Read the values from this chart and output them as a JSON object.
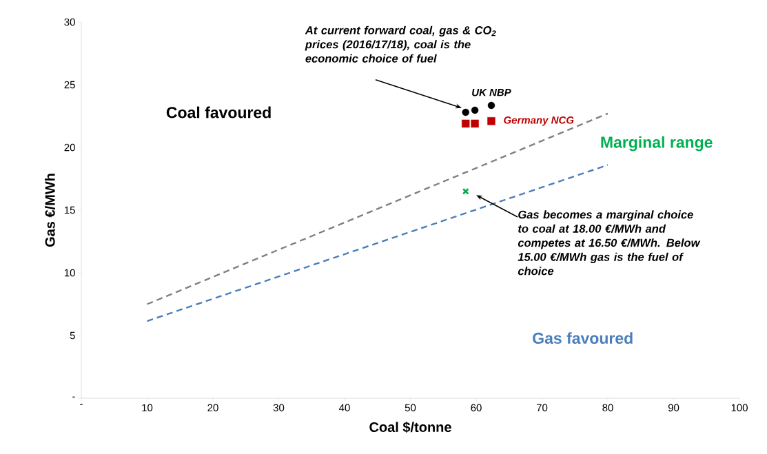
{
  "chart_data": {
    "type": "scatter",
    "xlabel": "Coal $/tonne",
    "ylabel": "Gas €/MWh",
    "xlim": [
      0,
      100
    ],
    "ylim": [
      0,
      30
    ],
    "xticks": [
      {
        "value": 0,
        "label": "-"
      },
      10,
      20,
      30,
      40,
      50,
      60,
      70,
      80,
      90,
      100
    ],
    "yticks": [
      {
        "value": 0,
        "label": "-"
      },
      5,
      10,
      15,
      20,
      25,
      30
    ],
    "series": [
      {
        "name": "UK NBP",
        "color": "#000000",
        "marker": "circle",
        "x": [
          58.4,
          59.8,
          62.3
        ],
        "values": [
          22.8,
          22.97,
          23.35
        ]
      },
      {
        "name": "Germany NCG",
        "color": "#c00000",
        "marker": "square",
        "x": [
          58.4,
          59.8,
          62.3
        ],
        "values": [
          21.9,
          21.9,
          22.1
        ]
      },
      {
        "type": "line",
        "color": "#808080",
        "marker": "none",
        "line_style": "dashed",
        "x": [
          10,
          80
        ],
        "values": [
          7.5,
          22.7
        ]
      },
      {
        "type": "line",
        "color": "#4a7ebb",
        "marker": "none",
        "line_style": "dashed",
        "x": [
          10,
          80
        ],
        "values": [
          6.15,
          18.6
        ]
      },
      {
        "color": "#00b050",
        "marker": "cross",
        "x": [
          58.4
        ],
        "values": [
          16.5
        ]
      }
    ],
    "annotations": [
      "At current forward coal, gas & CO$_{2}$ prices (2016/17/18), coal is the economic choice of fuel",
      "Gas becomes a marginal choice to coal at 18.00 €/MWh and competes at 16.50 €/MWh. Below 15.00 €/MWh gas is the fuel of choice",
      "Coal favoured",
      "Marginal range",
      "Gas favoured"
    ]
  }
}
